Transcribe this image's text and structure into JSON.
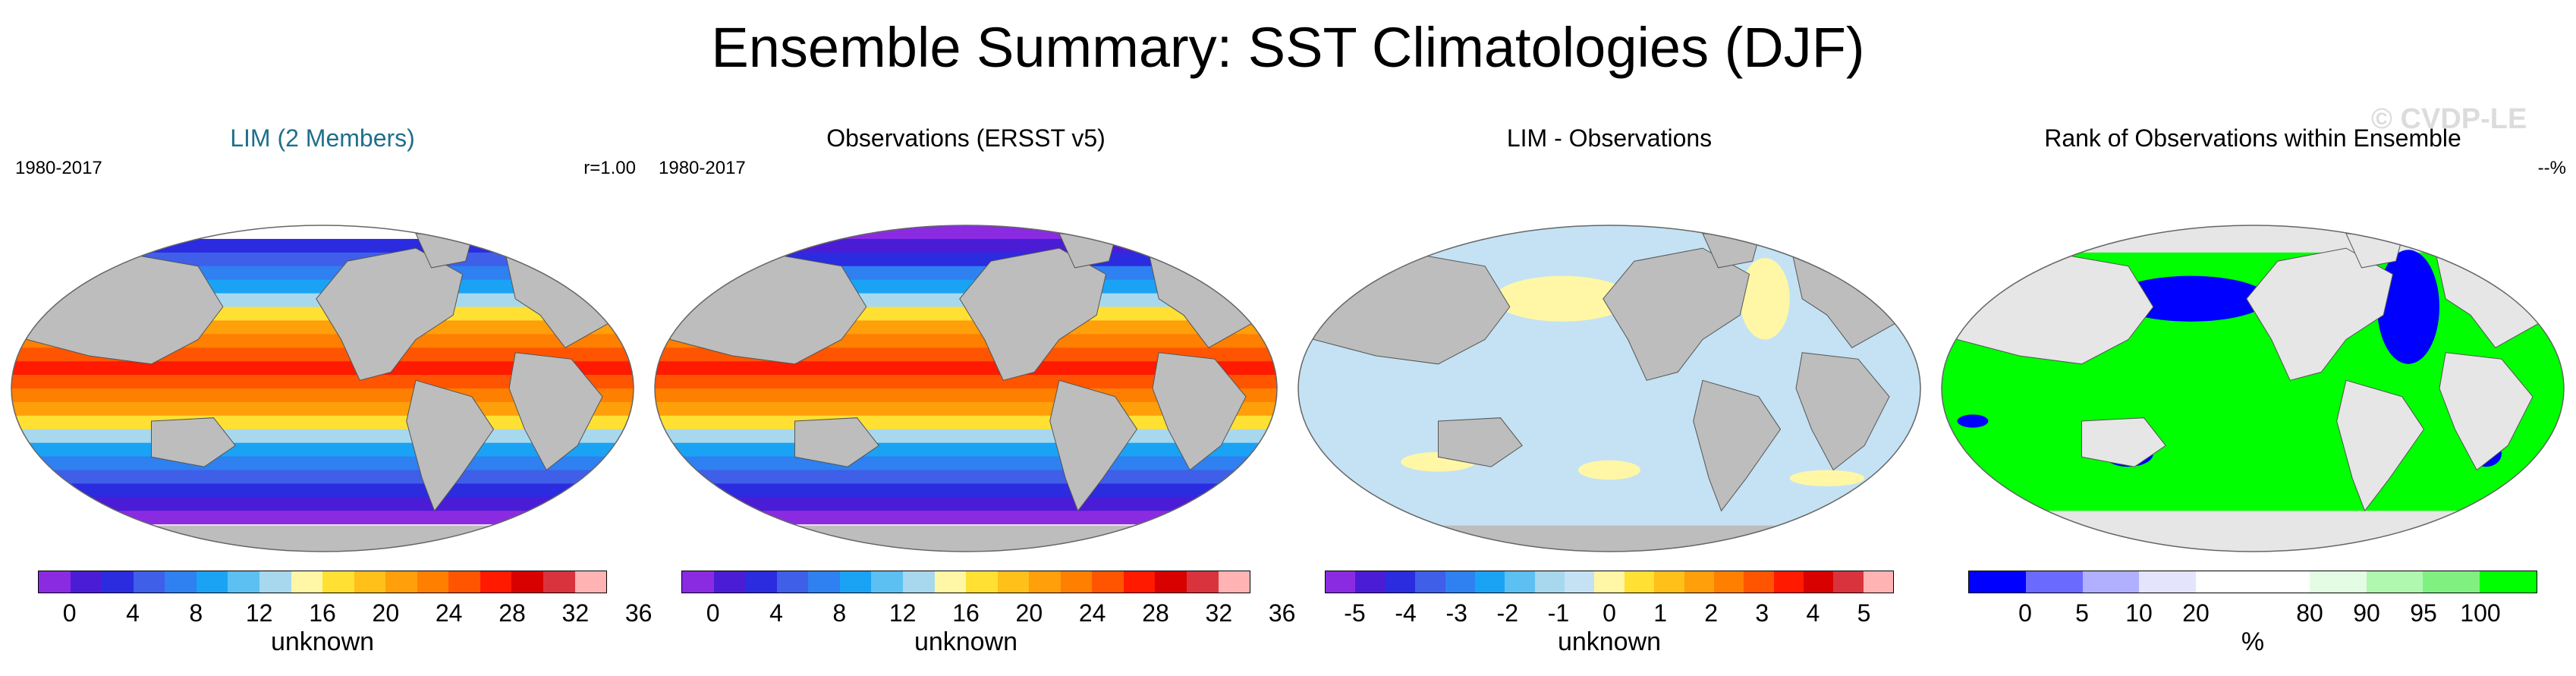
{
  "title": "Ensemble Summary: SST Climatologies (DJF)",
  "watermark": "© CVDP-LE",
  "panels": [
    {
      "title": "LIM (2 Members)",
      "title_color": "#1f6f8b",
      "left_label": "1980-2017",
      "right_label": "r=1.00",
      "map_style": "sst",
      "colors": [
        "#8a2be2",
        "#4b1cd6",
        "#2b2be0",
        "#3f5fe8",
        "#2f80f0",
        "#1aa3f5",
        "#5cc0f2",
        "#a8d8ee",
        "#fff7a6",
        "#ffe033",
        "#ffc01a",
        "#ff9f0a",
        "#ff7f00",
        "#ff5500",
        "#ff1a00",
        "#d90000",
        "#d9343d",
        "#ffb3b3"
      ],
      "ticks": [
        "0",
        "4",
        "8",
        "12",
        "16",
        "20",
        "24",
        "28",
        "32",
        "36"
      ],
      "units": "unknown"
    },
    {
      "title": "Observations (ERSST v5)",
      "title_color": "#000000",
      "left_label": "1980-2017",
      "right_label": "",
      "map_style": "sst-obs",
      "colors": [
        "#8a2be2",
        "#4b1cd6",
        "#2b2be0",
        "#3f5fe8",
        "#2f80f0",
        "#1aa3f5",
        "#5cc0f2",
        "#a8d8ee",
        "#fff7a6",
        "#ffe033",
        "#ffc01a",
        "#ff9f0a",
        "#ff7f00",
        "#ff5500",
        "#ff1a00",
        "#d90000",
        "#d9343d",
        "#ffb3b3"
      ],
      "ticks": [
        "0",
        "4",
        "8",
        "12",
        "16",
        "20",
        "24",
        "28",
        "32",
        "36"
      ],
      "units": "unknown"
    },
    {
      "title": "LIM - Observations",
      "title_color": "#000000",
      "left_label": "",
      "right_label": "",
      "map_style": "diff",
      "colors": [
        "#8a2be2",
        "#4b1cd6",
        "#2b2be0",
        "#3f5fe8",
        "#2f80f0",
        "#1aa3f5",
        "#5cc0f2",
        "#a8d8ee",
        "#c4e2f4",
        "#fff7a6",
        "#ffe033",
        "#ffc01a",
        "#ff9f0a",
        "#ff7f00",
        "#ff5500",
        "#ff1a00",
        "#d90000",
        "#d9343d",
        "#ffb3b3"
      ],
      "ticks": [
        "-5",
        "-4",
        "-3",
        "-2",
        "-1",
        "0",
        "1",
        "2",
        "3",
        "4",
        "5"
      ],
      "units": "unknown"
    },
    {
      "title": "Rank of Observations within Ensemble",
      "title_color": "#000000",
      "left_label": "",
      "right_label": "--%",
      "map_style": "rank",
      "colors": [
        "#0000ff",
        "#6a6aff",
        "#b0b0ff",
        "#e4e4fc",
        "#ffffff",
        "#ffffff",
        "#e4fce4",
        "#b0f7b0",
        "#80f080",
        "#00ff00"
      ],
      "ticks": [
        "0",
        "5",
        "10",
        "20",
        "80",
        "90",
        "95",
        "100"
      ],
      "units": "%"
    }
  ]
}
